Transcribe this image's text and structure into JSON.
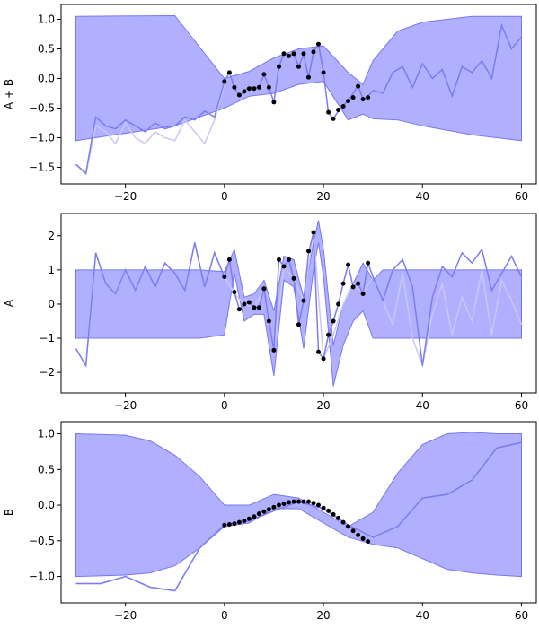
{
  "chart_data": [
    {
      "type": "line",
      "ylabel": "A + B",
      "xlim": [
        -33,
        63
      ],
      "ylim": [
        -1.78,
        1.25
      ],
      "xticks": [
        -20,
        0,
        20,
        40,
        60
      ],
      "xtick_labels": [
        "−20",
        "0",
        "20",
        "40",
        "60"
      ],
      "yticks": [
        -1.5,
        -1.0,
        -0.5,
        0.0,
        0.5,
        1.0
      ],
      "ytick_labels": [
        "−1.5",
        "−1.0",
        "−0.5",
        "0.0",
        "0.5",
        "1.0"
      ],
      "band": {
        "x": [
          -30,
          -10,
          0,
          5,
          10,
          15,
          20,
          25,
          28,
          30,
          35,
          40,
          50,
          60
        ],
        "upper": [
          1.05,
          1.06,
          0.0,
          0.12,
          0.35,
          0.5,
          0.55,
          0.1,
          -0.1,
          0.3,
          0.8,
          0.95,
          1.05,
          1.05
        ],
        "lower": [
          -1.05,
          -0.8,
          -0.5,
          -0.3,
          -0.25,
          -0.1,
          -0.05,
          -0.7,
          -0.6,
          -0.68,
          -0.7,
          -0.8,
          -0.95,
          -1.05
        ]
      },
      "mean": {
        "x": [
          -30,
          -28,
          -26,
          -24,
          -22,
          -20,
          -18,
          -16,
          -14,
          -12,
          -10,
          -8,
          -6,
          -4,
          -2,
          0,
          1,
          2,
          3,
          4,
          5,
          6,
          7,
          8,
          9,
          10,
          11,
          12,
          13,
          14,
          15,
          16,
          17,
          18,
          19,
          20,
          21,
          22,
          23,
          24,
          25,
          26,
          27,
          28,
          29,
          30,
          32,
          34,
          36,
          38,
          40,
          42,
          44,
          46,
          48,
          50,
          52,
          54,
          56,
          58,
          60
        ],
        "y": [
          -1.45,
          -1.6,
          -0.65,
          -0.8,
          -0.85,
          -0.7,
          -0.8,
          -0.9,
          -0.75,
          -0.85,
          -0.8,
          -0.65,
          -0.7,
          -0.55,
          -0.65,
          -0.05,
          0.1,
          -0.15,
          -0.3,
          -0.2,
          -0.15,
          -0.15,
          -0.15,
          0.07,
          -0.15,
          -0.4,
          0.2,
          0.42,
          0.38,
          0.42,
          0.2,
          0.4,
          0.02,
          0.45,
          0.58,
          0.1,
          -0.58,
          -0.68,
          -0.55,
          -0.45,
          -0.38,
          -0.25,
          -0.12,
          -0.35,
          -0.3,
          -0.2,
          -0.25,
          0.1,
          0.2,
          -0.15,
          0.25,
          0.0,
          0.15,
          -0.3,
          0.2,
          0.1,
          0.3,
          0.0,
          0.9,
          0.5,
          0.7
        ]
      },
      "samples": {
        "x": [
          -30,
          -28,
          -26,
          -24,
          -22,
          -20,
          -18,
          -16,
          -14,
          -12,
          -10,
          -8,
          -6,
          -4,
          -2,
          0
        ],
        "y": [
          -1.45,
          -1.62,
          -0.8,
          -0.9,
          -1.1,
          -0.75,
          -1.0,
          -1.1,
          -0.9,
          -1.0,
          -1.05,
          -0.7,
          -0.9,
          -1.1,
          -0.7,
          -0.1
        ]
      },
      "points": {
        "x": [
          0,
          1,
          2,
          3,
          4,
          5,
          6,
          7,
          8,
          9,
          10,
          11,
          12,
          13,
          14,
          15,
          16,
          17,
          18,
          19,
          20,
          21,
          22,
          23,
          24,
          25,
          26,
          27,
          28,
          29
        ],
        "y": [
          -0.05,
          0.1,
          -0.15,
          -0.28,
          -0.22,
          -0.17,
          -0.17,
          -0.15,
          0.07,
          -0.15,
          -0.4,
          0.2,
          0.42,
          0.38,
          0.42,
          0.2,
          0.42,
          0.02,
          0.45,
          0.58,
          0.1,
          -0.57,
          -0.68,
          -0.53,
          -0.47,
          -0.38,
          -0.32,
          -0.13,
          -0.35,
          -0.32
        ]
      }
    },
    {
      "type": "line",
      "ylabel": "A",
      "xlim": [
        -33,
        63
      ],
      "ylim": [
        -2.6,
        2.65
      ],
      "xticks": [
        -20,
        0,
        20,
        40,
        60
      ],
      "xtick_labels": [
        "−20",
        "0",
        "20",
        "40",
        "60"
      ],
      "yticks": [
        -2,
        -1,
        0,
        1,
        2
      ],
      "ytick_labels": [
        "−2",
        "−1",
        "0",
        "1",
        "2"
      ],
      "band": {
        "x": [
          -30,
          -5,
          0,
          2,
          4,
          6,
          8,
          10,
          12,
          14,
          16,
          18,
          19,
          20,
          22,
          24,
          26,
          28,
          30,
          32,
          60
        ],
        "upper": [
          1.0,
          1.0,
          0.95,
          1.6,
          0.2,
          0.3,
          0.7,
          -0.2,
          1.4,
          1.3,
          0.2,
          1.8,
          2.45,
          1.6,
          -1.2,
          0.0,
          0.6,
          1.2,
          0.7,
          1.0,
          1.0
        ],
        "lower": [
          -1.0,
          -1.0,
          -0.9,
          0.9,
          -0.5,
          -0.3,
          -0.3,
          -2.1,
          0.7,
          0.5,
          -1.3,
          1.0,
          1.8,
          0.8,
          -2.4,
          -1.2,
          -0.5,
          -0.2,
          -1.0,
          -1.0,
          -1.0
        ]
      },
      "mean": {
        "x": [
          -30,
          -28,
          -26,
          -24,
          -22,
          -20,
          -18,
          -16,
          -14,
          -12,
          -10,
          -8,
          -6,
          -4,
          -2,
          0,
          1,
          2,
          3,
          4,
          5,
          6,
          7,
          8,
          9,
          10,
          11,
          12,
          13,
          14,
          15,
          16,
          17,
          18,
          19,
          20,
          21,
          22,
          23,
          24,
          25,
          26,
          27,
          28,
          29,
          30,
          32,
          34,
          36,
          38,
          40,
          42,
          44,
          46,
          48,
          50,
          52,
          54,
          56,
          58,
          60
        ],
        "y": [
          -1.3,
          -1.8,
          1.5,
          0.6,
          0.3,
          1.0,
          0.4,
          1.1,
          0.5,
          1.2,
          0.9,
          0.4,
          1.8,
          0.5,
          1.5,
          0.8,
          1.3,
          0.35,
          -0.15,
          0.0,
          0.05,
          -0.1,
          -0.1,
          0.45,
          -0.5,
          -1.35,
          1.3,
          1.1,
          1.3,
          0.75,
          -0.6,
          0.1,
          1.5,
          2.1,
          -1.4,
          -1.6,
          -0.9,
          -0.5,
          0.0,
          0.6,
          1.15,
          0.5,
          0.6,
          0.3,
          1.2,
          0.8,
          0.1,
          1.0,
          1.3,
          0.5,
          -1.8,
          0.2,
          1.1,
          0.8,
          1.5,
          1.2,
          1.6,
          0.4,
          0.9,
          1.4,
          0.8
        ]
      },
      "samples": {
        "x": [
          -30,
          -28,
          -26,
          -24,
          -22,
          -20,
          -18,
          -16,
          -14,
          -12,
          -10,
          -8,
          -6,
          -4,
          -2,
          0,
          2,
          4,
          6,
          8,
          10,
          12,
          14,
          16,
          18,
          20,
          22,
          24,
          26,
          28,
          30,
          32,
          34,
          36,
          38,
          40,
          42,
          44,
          46,
          48,
          50,
          52,
          54,
          56,
          58,
          60
        ],
        "y": [
          -1.3,
          -1.8,
          1.5,
          0.6,
          0.3,
          1.0,
          0.4,
          1.1,
          0.5,
          1.2,
          0.9,
          0.4,
          1.8,
          0.5,
          1.5,
          0.8,
          0.3,
          0.0,
          -0.1,
          0.45,
          -1.35,
          1.1,
          0.75,
          0.1,
          2.1,
          -1.6,
          -0.9,
          0.0,
          0.6,
          0.3,
          0.8,
          0.1,
          -0.6,
          0.9,
          -1.0,
          -1.8,
          -0.3,
          0.6,
          -0.9,
          0.2,
          -0.5,
          1.0,
          -0.9,
          0.7,
          0.1,
          -0.6
        ]
      },
      "points": {
        "x": [
          0,
          1,
          2,
          3,
          4,
          5,
          6,
          7,
          8,
          9,
          10,
          11,
          12,
          13,
          14,
          15,
          16,
          17,
          18,
          19,
          20,
          21,
          22,
          23,
          24,
          25,
          26,
          27,
          28,
          29
        ],
        "y": [
          0.8,
          1.3,
          0.35,
          -0.15,
          0.0,
          0.05,
          -0.1,
          -0.1,
          0.45,
          -0.5,
          -1.35,
          1.3,
          1.1,
          1.3,
          0.75,
          -0.6,
          0.1,
          1.55,
          2.1,
          -1.4,
          -1.6,
          -0.9,
          -0.5,
          0.0,
          0.6,
          1.15,
          0.5,
          0.6,
          0.3,
          1.2
        ]
      }
    },
    {
      "type": "line",
      "ylabel": "B",
      "xlim": [
        -33,
        63
      ],
      "ylim": [
        -1.37,
        1.17
      ],
      "xticks": [
        -20,
        0,
        20,
        40,
        60
      ],
      "xtick_labels": [
        "−20",
        "0",
        "20",
        "40",
        "60"
      ],
      "yticks": [
        -1.0,
        -0.5,
        0.0,
        0.5,
        1.0
      ],
      "ytick_labels": [
        "−1.0",
        "−0.5",
        "0.0",
        "0.5",
        "1.0"
      ],
      "band": {
        "x": [
          -30,
          -20,
          -15,
          -10,
          -5,
          0,
          5,
          10,
          15,
          20,
          25,
          30,
          35,
          40,
          45,
          50,
          55,
          60
        ],
        "upper": [
          1.0,
          0.98,
          0.9,
          0.7,
          0.4,
          0.0,
          0.0,
          0.15,
          0.1,
          -0.1,
          -0.3,
          -0.1,
          0.45,
          0.85,
          1.0,
          1.02,
          1.0,
          1.0
        ],
        "lower": [
          -1.0,
          -0.98,
          -0.95,
          -0.85,
          -0.6,
          -0.3,
          -0.25,
          -0.05,
          -0.05,
          -0.25,
          -0.45,
          -0.55,
          -0.6,
          -0.75,
          -0.9,
          -0.95,
          -0.98,
          -1.0
        ]
      },
      "mean": {
        "x": [
          -30,
          -25,
          -20,
          -15,
          -10,
          -5,
          0,
          5,
          10,
          15,
          20,
          25,
          30,
          35,
          40,
          45,
          50,
          55,
          60
        ],
        "y": [
          -1.1,
          -1.1,
          -1.0,
          -1.15,
          -1.2,
          -0.6,
          -0.28,
          -0.22,
          -0.08,
          0.05,
          -0.05,
          -0.28,
          -0.45,
          -0.3,
          0.1,
          0.15,
          0.35,
          0.8,
          0.88
        ]
      },
      "samples": {
        "x": [
          -30,
          -25,
          -20,
          -15,
          -10,
          -5,
          0
        ],
        "y": [
          -1.1,
          -1.1,
          -1.0,
          -1.15,
          -1.2,
          -0.6,
          -0.28
        ]
      },
      "points": {
        "x": [
          0,
          1,
          2,
          3,
          4,
          5,
          6,
          7,
          8,
          9,
          10,
          11,
          12,
          13,
          14,
          15,
          16,
          17,
          18,
          19,
          20,
          21,
          22,
          23,
          24,
          25,
          26,
          27,
          28,
          29
        ],
        "y": [
          -0.28,
          -0.27,
          -0.26,
          -0.24,
          -0.22,
          -0.19,
          -0.16,
          -0.12,
          -0.09,
          -0.06,
          -0.03,
          0.0,
          0.02,
          0.04,
          0.05,
          0.05,
          0.05,
          0.05,
          0.03,
          0.0,
          -0.04,
          -0.08,
          -0.13,
          -0.18,
          -0.24,
          -0.3,
          -0.36,
          -0.42,
          -0.47,
          -0.51
        ]
      }
    }
  ],
  "colors": {
    "band_fill": "#b0b0ff",
    "band_edge": "#7777ee",
    "mean_line": "#7c7cf0",
    "samples_line": "#c8c8f5",
    "points": "#000000",
    "axes": "#000000"
  }
}
